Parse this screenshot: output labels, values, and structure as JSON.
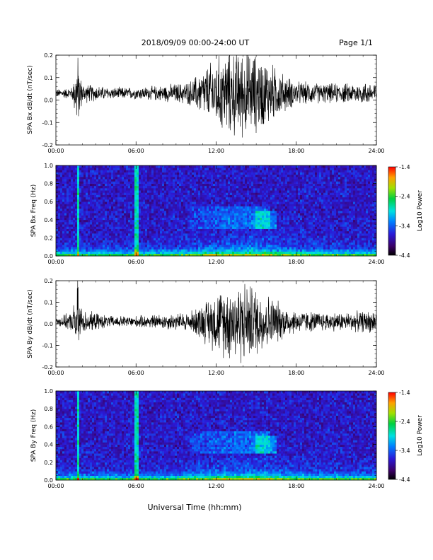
{
  "header": {
    "title": "2018/09/09  00:00-24:00 UT",
    "page": "Page 1/1"
  },
  "footer": {
    "xlabel": "Universal Time (hh:mm)"
  },
  "chart_data": [
    {
      "id": "bx-dbdt",
      "type": "line",
      "ylabel": "SPA Bx dB/dt (nT/sec)",
      "ylim": [
        -0.2,
        0.2
      ],
      "yticks": [
        "0.2",
        "0.1",
        "0.0",
        "-0.1",
        "-0.2"
      ],
      "ytick_values": [
        0.2,
        0.1,
        0.0,
        -0.1,
        -0.2
      ],
      "xticks": [
        "00:00",
        "06:00",
        "12:00",
        "18:00",
        "24:00"
      ],
      "baseline": 0.03,
      "envelope": {
        "hours": [
          0,
          1.2,
          1.6,
          2.0,
          4,
          6,
          8,
          10,
          11,
          12,
          13,
          14,
          15,
          16,
          17,
          18,
          20,
          22,
          24
        ],
        "amplitude": [
          0.02,
          0.03,
          0.16,
          0.05,
          0.03,
          0.03,
          0.04,
          0.06,
          0.12,
          0.18,
          0.22,
          0.22,
          0.2,
          0.16,
          0.1,
          0.06,
          0.05,
          0.05,
          0.06
        ]
      }
    },
    {
      "id": "bx-spectrogram",
      "type": "heatmap",
      "ylabel": "SPA Bx Freq (Hz)",
      "ylim": [
        0.0,
        1.0
      ],
      "yticks": [
        "1.0",
        "0.8",
        "0.6",
        "0.4",
        "0.2",
        "0.0"
      ],
      "ytick_values": [
        1.0,
        0.8,
        0.6,
        0.4,
        0.2,
        0.0
      ],
      "xticks": [
        "00:00",
        "06:00",
        "12:00",
        "18:00",
        "24:00"
      ],
      "colorbar": {
        "label": "Log10 Power",
        "ticks": [
          "-1.4",
          "-2.4",
          "-3.4",
          "-4.4"
        ],
        "tick_values": [
          -1.4,
          -2.4,
          -3.4,
          -4.4
        ],
        "range": [
          -4.4,
          -1.4
        ]
      }
    },
    {
      "id": "by-dbdt",
      "type": "line",
      "ylabel": "SPA By dB/dt (nT/sec)",
      "ylim": [
        -0.2,
        0.2
      ],
      "yticks": [
        "0.2",
        "0.1",
        "0.0",
        "-0.1",
        "-0.2"
      ],
      "ytick_values": [
        0.2,
        0.1,
        0.0,
        -0.1,
        -0.2
      ],
      "xticks": [
        "00:00",
        "06:00",
        "12:00",
        "18:00",
        "24:00"
      ],
      "baseline": 0.01,
      "envelope": {
        "hours": [
          0,
          1.2,
          1.6,
          2.0,
          4,
          6,
          8,
          10,
          11,
          12,
          13,
          14,
          15,
          16,
          17,
          18,
          20,
          22,
          24
        ],
        "amplitude": [
          0.02,
          0.05,
          0.18,
          0.06,
          0.03,
          0.03,
          0.04,
          0.05,
          0.1,
          0.16,
          0.2,
          0.22,
          0.18,
          0.14,
          0.09,
          0.06,
          0.05,
          0.05,
          0.06
        ]
      }
    },
    {
      "id": "by-spectrogram",
      "type": "heatmap",
      "ylabel": "SPA By Freq (Hz)",
      "ylim": [
        0.0,
        1.0
      ],
      "yticks": [
        "1.0",
        "0.8",
        "0.6",
        "0.4",
        "0.2",
        "0.0"
      ],
      "ytick_values": [
        1.0,
        0.8,
        0.6,
        0.4,
        0.2,
        0.0
      ],
      "xticks": [
        "00:00",
        "06:00",
        "12:00",
        "18:00",
        "24:00"
      ],
      "colorbar": {
        "label": "Log10 Power",
        "ticks": [
          "-1.4",
          "-2.4",
          "-3.4",
          "-4.4"
        ],
        "tick_values": [
          -1.4,
          -2.4,
          -3.4,
          -4.4
        ],
        "range": [
          -4.4,
          -1.4
        ]
      }
    }
  ]
}
